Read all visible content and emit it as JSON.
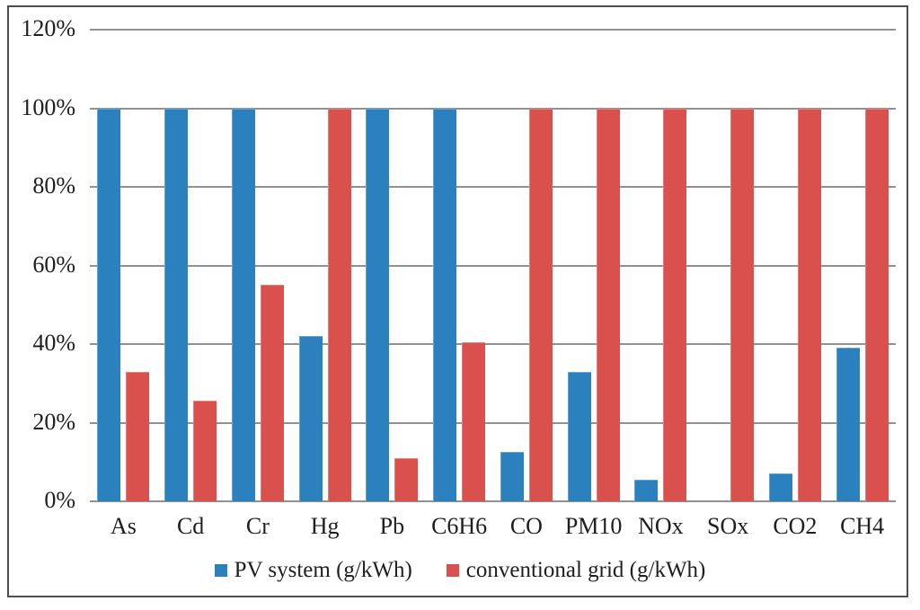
{
  "chart_data": {
    "type": "bar",
    "title": "",
    "xlabel": "",
    "ylabel": "",
    "categories": [
      "As",
      "Cd",
      "Cr",
      "Hg",
      "Pb",
      "C6H6",
      "CO",
      "PM10",
      "NOx",
      "SOx",
      "CO2",
      "CH4"
    ],
    "series": [
      {
        "name": "PV system (g/kWh)",
        "color": "#2a81be",
        "values": [
          100,
          100,
          100,
          42,
          100,
          100,
          12.5,
          33,
          5.5,
          0,
          7,
          39
        ]
      },
      {
        "name": "conventional grid (g/kWh)",
        "color": "#d9504d",
        "values": [
          33,
          25.5,
          55,
          100,
          11,
          40.5,
          100,
          100,
          100,
          100,
          100,
          100
        ]
      }
    ],
    "ylim": [
      0,
      120
    ],
    "ytick_step": 20,
    "ytick_labels": [
      "0%",
      "20%",
      "40%",
      "60%",
      "80%",
      "100%",
      "120%"
    ],
    "grid": true,
    "legend_position": "bottom-center",
    "colors": {
      "gridline": "#919191",
      "frame": "#4d4d4d",
      "text": "#1f1f1f",
      "background": "#ffffff"
    }
  }
}
